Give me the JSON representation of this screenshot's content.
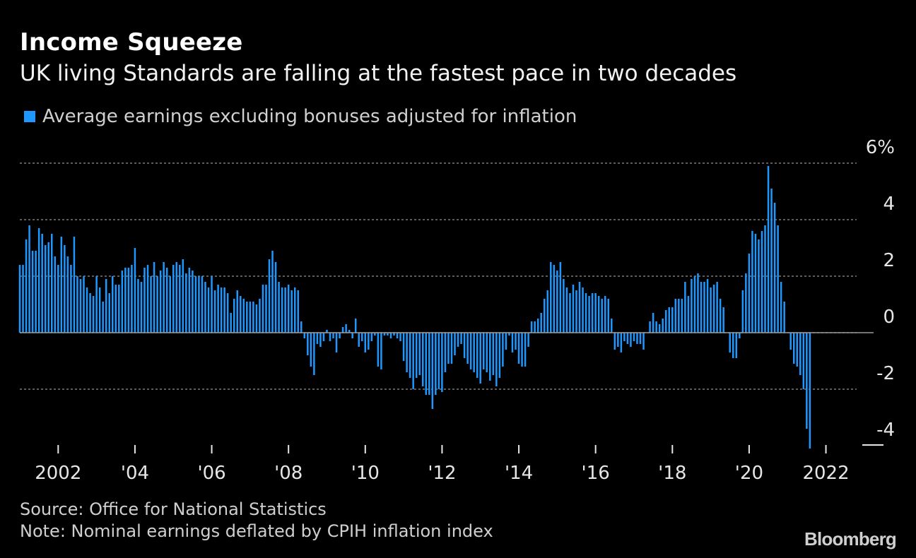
{
  "header": {
    "title": "Income Squeeze",
    "subtitle": "UK living Standards are falling at the fastest pace in two decades"
  },
  "footer": {
    "source": "Source: Office for National Statistics",
    "note": "Note: Nominal earnings deflated by CPIH inflation index",
    "brand": "Bloomberg"
  },
  "colors": {
    "bar": "#1e98ff",
    "grid": "#7a7a7a",
    "background": "#000000"
  },
  "chart_data": {
    "type": "bar",
    "title": "Income Squeeze",
    "subtitle": "UK living Standards are falling at the fastest pace in two decades",
    "legend": [
      "Average earnings excluding bonuses adjusted for inflation"
    ],
    "legend_position": "top-left",
    "ylim": [
      -4,
      6
    ],
    "ytick_labels": [
      "6%",
      "4",
      "2",
      "0",
      "-2",
      "-4"
    ],
    "ytick_values": [
      6,
      4,
      2,
      0,
      -2,
      -4
    ],
    "grid": true,
    "xlim": [
      2001.0,
      2022.8
    ],
    "xtick_labels": [
      "2002",
      "'04",
      "'06",
      "'08",
      "'10",
      "'12",
      "'14",
      "'16",
      "'18",
      "'20",
      "2022"
    ],
    "xtick_values": [
      2002,
      2004,
      2006,
      2008,
      2010,
      2012,
      2014,
      2016,
      2018,
      2020,
      2022
    ],
    "series": [
      {
        "name": "Average earnings excluding bonuses adjusted for inflation",
        "x_start": 2001.0,
        "step": 0.08333,
        "values": [
          2.4,
          2.4,
          3.3,
          3.8,
          2.9,
          2.9,
          3.7,
          3.5,
          3.1,
          3.2,
          3.5,
          2.7,
          2.4,
          3.4,
          3.1,
          2.7,
          2.4,
          3.4,
          2.0,
          1.9,
          2.0,
          1.6,
          1.4,
          1.3,
          2.0,
          1.6,
          1.1,
          1.9,
          1.4,
          2.0,
          1.7,
          1.7,
          2.2,
          2.3,
          2.3,
          2.4,
          3.0,
          1.9,
          1.8,
          2.3,
          2.4,
          2.0,
          2.5,
          2.0,
          2.2,
          2.5,
          2.3,
          2.0,
          2.4,
          2.5,
          2.4,
          2.6,
          2.1,
          2.3,
          2.2,
          2.0,
          2.0,
          2.0,
          1.8,
          1.6,
          2.0,
          1.5,
          1.7,
          1.6,
          1.6,
          1.4,
          0.7,
          1.2,
          1.5,
          1.3,
          1.2,
          1.1,
          1.1,
          1.1,
          1.0,
          1.2,
          1.7,
          1.7,
          2.6,
          2.9,
          2.5,
          1.8,
          1.6,
          1.6,
          1.7,
          1.5,
          1.6,
          1.5,
          0.4,
          -0.2,
          -0.8,
          -1.2,
          -1.5,
          -0.4,
          -0.5,
          -0.3,
          0.1,
          -0.3,
          -0.2,
          -0.7,
          -0.2,
          0.2,
          0.3,
          0.1,
          -0.2,
          0.5,
          -0.5,
          -0.3,
          -0.7,
          -0.6,
          -0.3,
          -0.1,
          -1.2,
          -1.3,
          -0.1,
          -0.1,
          -0.2,
          -0.1,
          -0.2,
          -0.3,
          -1.0,
          -1.4,
          -1.6,
          -2.0,
          -1.6,
          -1.5,
          -1.9,
          -2.2,
          -2.2,
          -2.7,
          -2.2,
          -2.0,
          -2.1,
          -1.4,
          -1.1,
          -1.1,
          -0.8,
          -0.5,
          -0.4,
          -0.9,
          -1.1,
          -1.3,
          -1.4,
          -1.6,
          -1.8,
          -1.3,
          -1.4,
          -1.7,
          -1.5,
          -1.9,
          -1.6,
          -1.2,
          -0.6,
          -0.1,
          -0.7,
          -0.6,
          -1.1,
          -1.2,
          -1.2,
          -0.5,
          0.4,
          0.4,
          0.5,
          0.7,
          1.2,
          1.5,
          2.5,
          2.4,
          2.2,
          2.5,
          1.9,
          1.6,
          1.4,
          1.7,
          1.5,
          1.8,
          1.6,
          1.4,
          1.3,
          1.4,
          1.4,
          1.3,
          1.2,
          1.3,
          1.2,
          0.5,
          -0.6,
          -0.5,
          -0.7,
          -0.3,
          -0.4,
          -0.5,
          -0.3,
          -0.4,
          -0.4,
          -0.6,
          0.0,
          0.4,
          0.7,
          0.4,
          0.3,
          0.5,
          0.8,
          0.9,
          0.9,
          1.2,
          1.2,
          1.2,
          1.8,
          1.3,
          1.9,
          2.0,
          2.1,
          1.8,
          1.8,
          1.9,
          1.6,
          1.7,
          1.8,
          1.2,
          0.9,
          0.0,
          -0.7,
          -0.9,
          -0.9,
          -0.2,
          1.5,
          2.1,
          2.8,
          3.6,
          3.5,
          3.3,
          3.6,
          3.8,
          5.9,
          5.1,
          4.6,
          3.8,
          1.8,
          1.1,
          0.0,
          -0.6,
          -1.1,
          -1.2,
          -1.5,
          -2.0,
          -3.4,
          -4.1
        ]
      }
    ]
  }
}
